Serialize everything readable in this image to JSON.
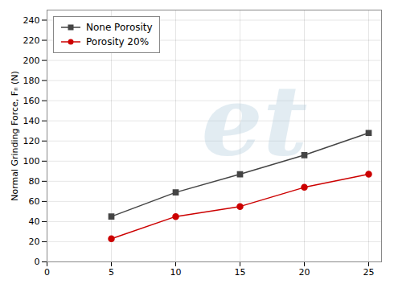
{
  "chart_data": {
    "type": "line",
    "ylabel": "Normal Grinding Force, Fₙ (N)",
    "x": [
      5,
      10,
      15,
      20,
      25
    ],
    "series": [
      {
        "name": "None Porosity",
        "color": "#444444",
        "marker": "square",
        "values": [
          45,
          69,
          87,
          106,
          128
        ]
      },
      {
        "name": "Porosity 20%",
        "color": "#cc0000",
        "marker": "circle",
        "values": [
          23,
          45,
          55,
          74,
          87
        ]
      }
    ],
    "xlim": [
      0,
      26
    ],
    "ylim": [
      0,
      250
    ],
    "xticks": [
      0,
      5,
      10,
      15,
      20,
      25
    ],
    "yticks": [
      0,
      20,
      40,
      60,
      80,
      100,
      120,
      140,
      160,
      180,
      200,
      220,
      240
    ],
    "grid": true,
    "legend": "upper left",
    "annotations": [
      {
        "text": "et",
        "color": "#adc8db"
      }
    ]
  }
}
